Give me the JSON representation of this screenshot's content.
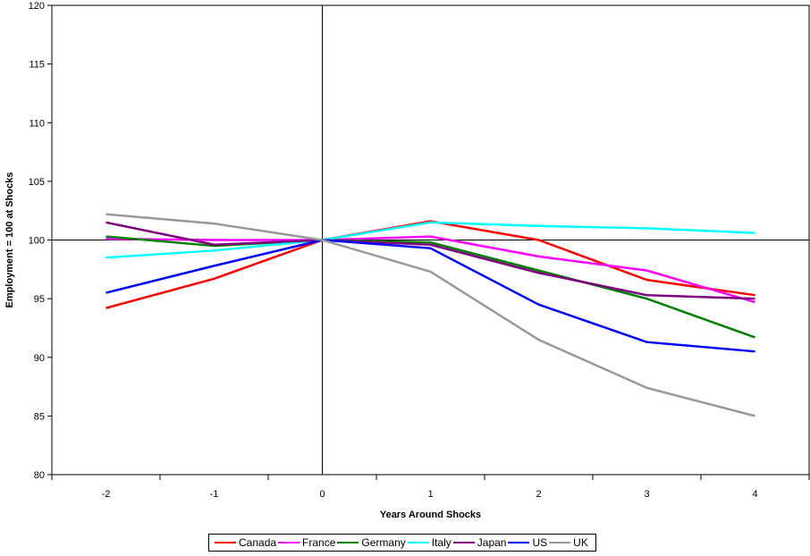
{
  "chart_data": {
    "type": "line",
    "title": "",
    "xlabel": "Years Around Shocks",
    "ylabel": "Employment = 100 at Shocks",
    "x": [
      -2,
      -1,
      0,
      1,
      2,
      3,
      4
    ],
    "xlim": [
      -2.5,
      4.5
    ],
    "ylim": [
      80,
      120
    ],
    "yticks": [
      80,
      85,
      90,
      95,
      100,
      105,
      110,
      115,
      120
    ],
    "xticks": [
      -2,
      -1,
      0,
      1,
      2,
      3,
      4
    ],
    "reference_lines": {
      "x": 0,
      "y": 100
    },
    "grid": false,
    "legend_position": "bottom",
    "series": [
      {
        "name": "Canada",
        "color": "#ff0000",
        "values": [
          94.2,
          96.7,
          100,
          101.6,
          100.0,
          96.6,
          95.3
        ]
      },
      {
        "name": "France",
        "color": "#ff00ff",
        "values": [
          100.1,
          100.0,
          100,
          100.3,
          98.6,
          97.4,
          94.7
        ]
      },
      {
        "name": "Germany",
        "color": "#008000",
        "values": [
          100.3,
          99.5,
          100,
          99.8,
          97.4,
          95.0,
          91.7
        ]
      },
      {
        "name": "Italy",
        "color": "#00ffff",
        "values": [
          98.5,
          99.1,
          100,
          101.5,
          101.2,
          101.0,
          100.6
        ]
      },
      {
        "name": "Japan",
        "color": "#800080",
        "values": [
          101.5,
          99.6,
          100,
          99.6,
          97.2,
          95.3,
          95.0
        ]
      },
      {
        "name": "US",
        "color": "#0000ff",
        "values": [
          95.5,
          97.8,
          100,
          99.3,
          94.5,
          91.3,
          90.5
        ]
      },
      {
        "name": "UK",
        "color": "#999999",
        "values": [
          102.2,
          101.4,
          100,
          97.3,
          91.5,
          87.4,
          85.0
        ]
      }
    ]
  }
}
